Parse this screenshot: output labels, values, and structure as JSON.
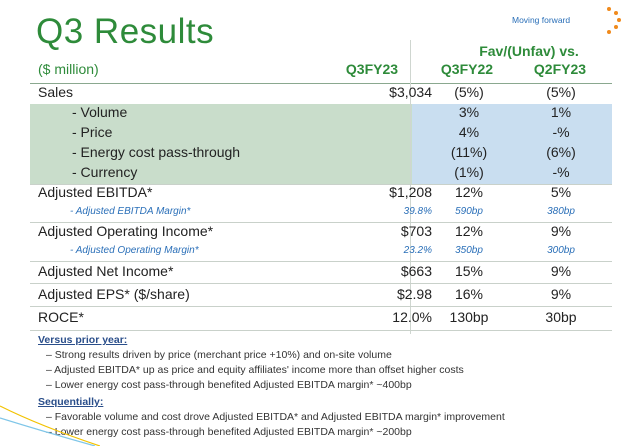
{
  "title": "Q3 Results",
  "tagline": "Moving forward",
  "header": {
    "group_label": "Fav/(Unfav) vs.",
    "unit": "($ million)",
    "col1": "Q3FY23",
    "col2": "Q3FY22",
    "col3": "Q2FY23"
  },
  "rows": [
    {
      "label": "Sales",
      "v1": "$3,034",
      "v2": "(5%)",
      "v3": "(5%)"
    },
    {
      "label": "- Volume",
      "v1": "",
      "v2": "3%",
      "v3": "1%"
    },
    {
      "label": "- Price",
      "v1": "",
      "v2": "4%",
      "v3": "-%"
    },
    {
      "label": "- Energy cost pass-through",
      "v1": "",
      "v2": "(11%)",
      "v3": "(6%)"
    },
    {
      "label": "- Currency",
      "v1": "",
      "v2": "(1%)",
      "v3": "-%"
    },
    {
      "label": "Adjusted EBITDA*",
      "v1": "$1,208",
      "v2": "12%",
      "v3": "5%"
    },
    {
      "label": "- Adjusted EBITDA Margin*",
      "v1": "39.8%",
      "v2": "590bp",
      "v3": "380bp"
    },
    {
      "label": "Adjusted Operating Income*",
      "v1": "$703",
      "v2": "12%",
      "v3": "9%"
    },
    {
      "label": "- Adjusted Operating Margin*",
      "v1": "23.2%",
      "v2": "350bp",
      "v3": "300bp"
    },
    {
      "label": "Adjusted Net Income*",
      "v1": "$663",
      "v2": "15%",
      "v3": "9%"
    },
    {
      "label": "Adjusted EPS* ($/share)",
      "v1": "$2.98",
      "v2": "16%",
      "v3": "9%"
    },
    {
      "label": "ROCE*",
      "v1": "12.0%",
      "v2": "130bp",
      "v3": "30bp"
    }
  ],
  "notes": {
    "prior_year_head": "Versus prior year:",
    "prior_year": [
      "–  Strong results driven by price (merchant price +10%) and on-site volume",
      "–  Adjusted EBITDA* up as price and equity affiliates' income more than offset higher costs",
      "–  Lower energy cost pass-through benefited Adjusted EBITDA margin* ~400bp"
    ],
    "sequential_head": "Sequentially:",
    "sequential": [
      "–  Favorable volume and cost drove Adjusted EBITDA* and Adjusted EBITDA margin* improvement",
      "–  Lower energy cost pass-through benefited Adjusted EBITDA margin* ~200bp"
    ]
  },
  "colors": {
    "title_green": "#2e8b3a",
    "accent_blue": "#2a6fb8",
    "shade_green": "#c9ddcb",
    "shade_blue": "#c9def0",
    "logo_orange": "#f08a1c"
  }
}
